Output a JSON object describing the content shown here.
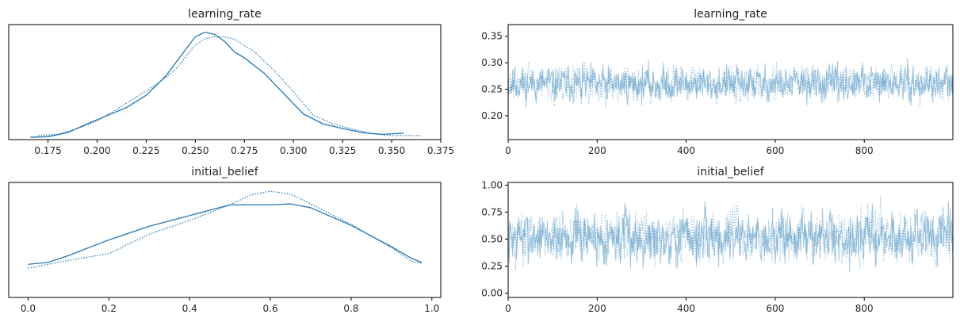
{
  "chart_data": [
    {
      "type": "line",
      "kind": "density",
      "title": "learning_rate",
      "xlim": [
        0.155,
        0.375
      ],
      "ylim": [
        -0.4,
        19.3
      ],
      "xticks": [
        0.175,
        0.2,
        0.225,
        0.25,
        0.275,
        0.3,
        0.325,
        0.35,
        0.375
      ],
      "xtick_labels": [
        "0.175",
        "0.200",
        "0.225",
        "0.250",
        "0.275",
        "0.300",
        "0.325",
        "0.350",
        "0.375"
      ],
      "yticks": [],
      "color": "#1f77b4",
      "series": [
        {
          "style": "solid",
          "x": [
            0.166,
            0.175,
            0.185,
            0.195,
            0.205,
            0.215,
            0.225,
            0.235,
            0.245,
            0.25,
            0.255,
            0.26,
            0.265,
            0.27,
            0.275,
            0.285,
            0.295,
            0.305,
            0.315,
            0.325,
            0.335,
            0.345,
            0.356
          ],
          "y": [
            0.0,
            0.1,
            0.8,
            2.3,
            3.7,
            5.1,
            7.2,
            10.5,
            15.0,
            17.2,
            18.0,
            17.6,
            16.4,
            14.6,
            13.6,
            11.0,
            7.5,
            4.0,
            2.3,
            1.5,
            0.8,
            0.5,
            0.7
          ]
        },
        {
          "style": "dotted",
          "x": [
            0.17,
            0.18,
            0.19,
            0.2,
            0.21,
            0.22,
            0.23,
            0.24,
            0.25,
            0.255,
            0.26,
            0.265,
            0.27,
            0.275,
            0.28,
            0.29,
            0.3,
            0.31,
            0.32,
            0.33,
            0.34,
            0.35,
            0.365
          ],
          "y": [
            0.3,
            0.5,
            1.5,
            2.8,
            4.8,
            6.9,
            9.0,
            11.6,
            15.8,
            16.9,
            17.2,
            17.2,
            16.8,
            15.7,
            14.7,
            11.5,
            7.8,
            3.8,
            2.3,
            1.4,
            0.6,
            0.3,
            0.3
          ]
        }
      ]
    },
    {
      "type": "line",
      "kind": "trace",
      "title": "learning_rate",
      "draws": 1000,
      "center": 0.26,
      "spread": 0.033,
      "value_range": [
        0.165,
        0.365
      ],
      "xlim": [
        0,
        999
      ],
      "ylim": [
        0.155,
        0.372
      ],
      "xticks": [
        0,
        200,
        400,
        600,
        800
      ],
      "xtick_labels": [
        "0",
        "200",
        "400",
        "600",
        "800"
      ],
      "yticks": [
        0.2,
        0.25,
        0.3,
        0.35
      ],
      "ytick_labels": [
        "0.20",
        "0.25",
        "0.30",
        "0.35"
      ],
      "color": "#1f77b4",
      "opacity": 0.4,
      "series": [
        {
          "style": "solid",
          "seed": 11
        },
        {
          "style": "dotted",
          "seed": 29
        }
      ]
    },
    {
      "type": "line",
      "kind": "density",
      "title": "initial_belief",
      "xlim": [
        -0.048,
        1.022
      ],
      "ylim": [
        -0.1,
        1.08
      ],
      "xticks": [
        0.0,
        0.2,
        0.4,
        0.6,
        0.8,
        1.0
      ],
      "xtick_labels": [
        "0.0",
        "0.2",
        "0.4",
        "0.6",
        "0.8",
        "1.0"
      ],
      "yticks": [],
      "color": "#1f77b4",
      "series": [
        {
          "style": "solid",
          "x": [
            0.0,
            0.05,
            0.1,
            0.2,
            0.3,
            0.4,
            0.5,
            0.55,
            0.6,
            0.65,
            0.7,
            0.8,
            0.9,
            0.95,
            0.975
          ],
          "y": [
            0.24,
            0.26,
            0.33,
            0.49,
            0.63,
            0.74,
            0.85,
            0.85,
            0.85,
            0.86,
            0.82,
            0.64,
            0.42,
            0.3,
            0.26
          ]
        },
        {
          "style": "dotted",
          "x": [
            0.0,
            0.1,
            0.2,
            0.3,
            0.4,
            0.5,
            0.55,
            0.6,
            0.65,
            0.7,
            0.8,
            0.9,
            0.95,
            0.975
          ],
          "y": [
            0.2,
            0.28,
            0.35,
            0.55,
            0.69,
            0.85,
            0.95,
            0.99,
            0.96,
            0.86,
            0.65,
            0.41,
            0.27,
            0.25
          ]
        }
      ]
    },
    {
      "type": "line",
      "kind": "trace",
      "title": "initial_belief",
      "draws": 1000,
      "center": 0.52,
      "spread": 0.24,
      "value_range": [
        0.0,
        0.98
      ],
      "xlim": [
        0,
        999
      ],
      "ylim": [
        -0.04,
        1.025
      ],
      "xticks": [
        0,
        200,
        400,
        600,
        800
      ],
      "xtick_labels": [
        "0",
        "200",
        "400",
        "600",
        "800"
      ],
      "yticks": [
        0.0,
        0.25,
        0.5,
        0.75,
        1.0
      ],
      "ytick_labels": [
        "0.00",
        "0.25",
        "0.50",
        "0.75",
        "1.00"
      ],
      "color": "#1f77b4",
      "opacity": 0.4,
      "series": [
        {
          "style": "solid",
          "seed": 7
        },
        {
          "style": "dotted",
          "seed": 43
        }
      ]
    }
  ]
}
